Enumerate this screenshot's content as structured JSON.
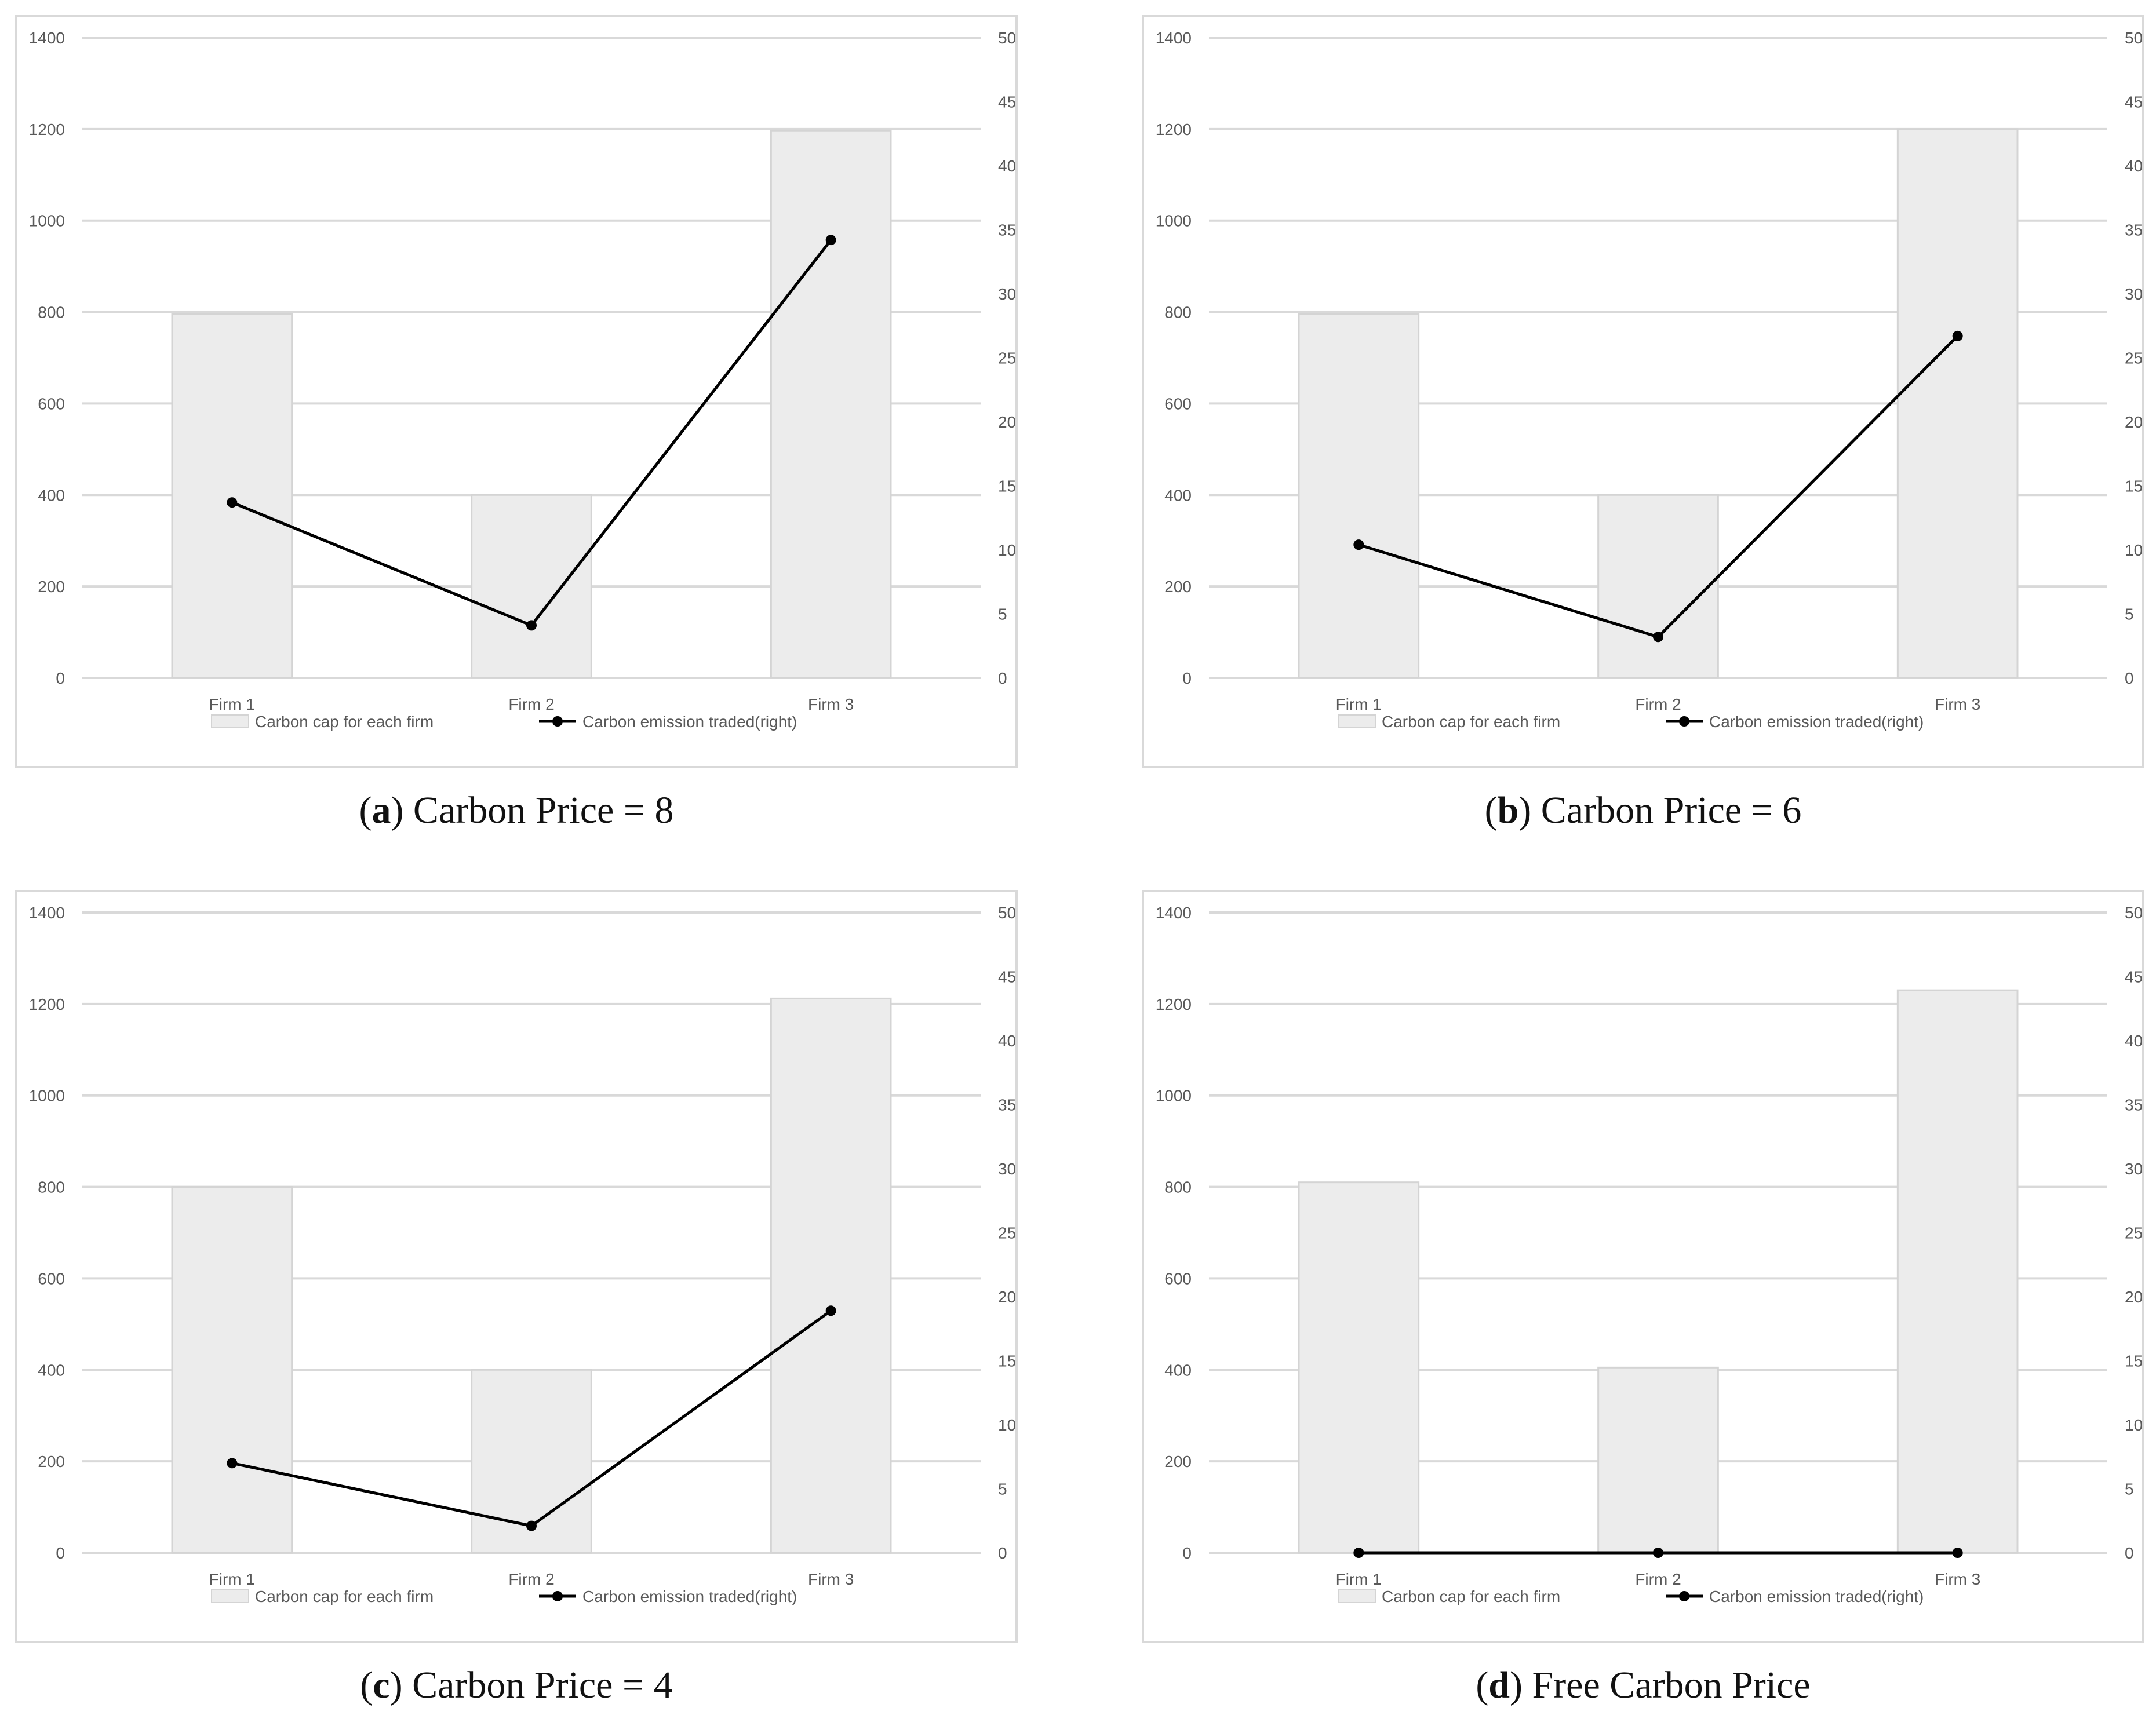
{
  "chart_data": [
    {
      "type": "bar",
      "caption_letter": "a",
      "caption_text": "Carbon Price = 8",
      "categories": [
        "Firm 1",
        "Firm 2",
        "Firm 3"
      ],
      "series": [
        {
          "name": "Carbon cap for each firm",
          "type": "bar",
          "axis": "left",
          "values": [
            795,
            400,
            1197
          ]
        },
        {
          "name": "Carbon emission traded(right)",
          "type": "line",
          "axis": "right",
          "values": [
            13.7,
            4.1,
            34.2
          ]
        }
      ],
      "ylim_left": [
        0,
        1400
      ],
      "ylim_right": [
        0,
        50
      ],
      "yticks_left": [
        "0",
        "200",
        "400",
        "600",
        "800",
        "1000",
        "1200",
        "1400"
      ],
      "yticks_right": [
        "0",
        "5",
        "10",
        "15",
        "20",
        "25",
        "30",
        "35",
        "40",
        "45",
        "50"
      ],
      "grid": true,
      "legend_position": "bottom"
    },
    {
      "type": "bar",
      "caption_letter": "b",
      "caption_text": "Carbon Price = 6",
      "categories": [
        "Firm 1",
        "Firm 2",
        "Firm 3"
      ],
      "series": [
        {
          "name": "Carbon cap for each firm",
          "type": "bar",
          "axis": "left",
          "values": [
            795,
            400,
            1200
          ]
        },
        {
          "name": "Carbon emission traded(right)",
          "type": "line",
          "axis": "right",
          "values": [
            10.4,
            3.2,
            26.7
          ]
        }
      ],
      "ylim_left": [
        0,
        1400
      ],
      "ylim_right": [
        0,
        50
      ],
      "yticks_left": [
        "0",
        "200",
        "400",
        "600",
        "800",
        "1000",
        "1200",
        "1400"
      ],
      "yticks_right": [
        "0",
        "5",
        "10",
        "15",
        "20",
        "25",
        "30",
        "35",
        "40",
        "45",
        "50"
      ],
      "grid": true,
      "legend_position": "bottom"
    },
    {
      "type": "bar",
      "caption_letter": "c",
      "caption_text": "Carbon Price = 4",
      "categories": [
        "Firm 1",
        "Firm 2",
        "Firm 3"
      ],
      "series": [
        {
          "name": "Carbon cap for each firm",
          "type": "bar",
          "axis": "left",
          "values": [
            800,
            400,
            1212
          ]
        },
        {
          "name": "Carbon emission traded(right)",
          "type": "line",
          "axis": "right",
          "values": [
            7.0,
            2.1,
            18.9
          ]
        }
      ],
      "ylim_left": [
        0,
        1400
      ],
      "ylim_right": [
        0,
        50
      ],
      "yticks_left": [
        "0",
        "200",
        "400",
        "600",
        "800",
        "1000",
        "1200",
        "1400"
      ],
      "yticks_right": [
        "0",
        "5",
        "10",
        "15",
        "20",
        "25",
        "30",
        "35",
        "40",
        "45",
        "50"
      ],
      "grid": true,
      "legend_position": "bottom"
    },
    {
      "type": "bar",
      "caption_letter": "d",
      "caption_text": "Free Carbon Price",
      "categories": [
        "Firm 1",
        "Firm 2",
        "Firm 3"
      ],
      "series": [
        {
          "name": "Carbon cap for each firm",
          "type": "bar",
          "axis": "left",
          "values": [
            810,
            405,
            1230
          ]
        },
        {
          "name": "Carbon emission traded(right)",
          "type": "line",
          "axis": "right",
          "values": [
            0,
            0,
            0
          ]
        }
      ],
      "ylim_left": [
        0,
        1400
      ],
      "ylim_right": [
        0,
        50
      ],
      "yticks_left": [
        "0",
        "200",
        "400",
        "600",
        "800",
        "1000",
        "1200",
        "1400"
      ],
      "yticks_right": [
        "0",
        "5",
        "10",
        "15",
        "20",
        "25",
        "30",
        "35",
        "40",
        "45",
        "50"
      ],
      "grid": true,
      "legend_position": "bottom"
    }
  ],
  "colors": {
    "bar_fill": "#ececec",
    "bar_stroke": "#d4d4d4",
    "line": "#000000",
    "grid": "#d9d9d9",
    "tick_text": "#595959"
  }
}
